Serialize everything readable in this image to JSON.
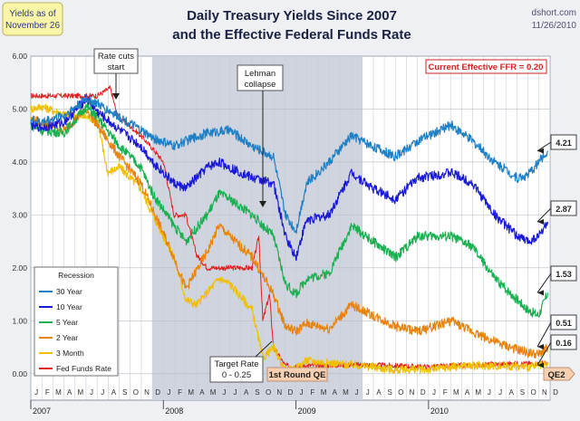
{
  "header": {
    "title_line1": "Daily Treasury Yields Since 2007",
    "title_line2": "and the Effective Federal Funds Rate",
    "source": "dshort.com",
    "date": "11/26/2010",
    "yields_box_line1": "Yields as of",
    "yields_box_line2": "November 26"
  },
  "colors": {
    "30y": "#1f7fc4",
    "10y": "#1a1ad6",
    "5y": "#18b050",
    "2y": "#e8830e",
    "3m": "#f0c000",
    "ffr": "#e02020",
    "recession": "#cfd3de",
    "panel": "#ffffff",
    "note_bg": "#f6d0b0",
    "yield_box_bg": "#fbf5a8"
  },
  "chart_data": {
    "type": "line",
    "ylim": [
      -0.5,
      6.0
    ],
    "yticks": [
      0.0,
      1.0,
      2.0,
      3.0,
      4.0,
      5.0,
      6.0
    ],
    "ytick_labels": [
      "0.00",
      "1.00",
      "2.00",
      "3.00",
      "4.00",
      "5.00",
      "6.00"
    ],
    "x_range": [
      2007.0,
      2010.917
    ],
    "month_labels": [
      "J",
      "F",
      "M",
      "A",
      "M",
      "J",
      "J",
      "A",
      "S",
      "O",
      "N",
      "D",
      "J",
      "F",
      "M",
      "A",
      "M",
      "J",
      "J",
      "A",
      "S",
      "O",
      "N",
      "D",
      "J",
      "F",
      "M",
      "A",
      "M",
      "J",
      "J",
      "A",
      "S",
      "O",
      "N",
      "D",
      "J",
      "F",
      "M",
      "A",
      "M",
      "J",
      "J",
      "A",
      "S",
      "O",
      "N",
      "D"
    ],
    "year_labels": [
      {
        "label": "2007",
        "x": 2007.0
      },
      {
        "label": "2008",
        "x": 2008.0
      },
      {
        "label": "2009",
        "x": 2009.0
      },
      {
        "label": "2010",
        "x": 2010.0
      }
    ],
    "recession": {
      "label": "Recession",
      "start": 2007.917,
      "end": 2009.5
    },
    "series": [
      {
        "key": "30y",
        "name": "30 Year",
        "last_label": "4.21",
        "last": 4.21,
        "points": [
          [
            2007.0,
            4.8
          ],
          [
            2007.08,
            4.75
          ],
          [
            2007.25,
            4.88
          ],
          [
            2007.42,
            5.2
          ],
          [
            2007.5,
            5.1
          ],
          [
            2007.67,
            4.85
          ],
          [
            2007.83,
            4.6
          ],
          [
            2007.92,
            4.45
          ],
          [
            2008.08,
            4.3
          ],
          [
            2008.17,
            4.4
          ],
          [
            2008.33,
            4.55
          ],
          [
            2008.5,
            4.6
          ],
          [
            2008.67,
            4.3
          ],
          [
            2008.83,
            4.1
          ],
          [
            2008.92,
            3.0
          ],
          [
            2009.0,
            2.7
          ],
          [
            2009.08,
            3.6
          ],
          [
            2009.25,
            4.0
          ],
          [
            2009.42,
            4.5
          ],
          [
            2009.58,
            4.3
          ],
          [
            2009.75,
            4.1
          ],
          [
            2009.92,
            4.4
          ],
          [
            2010.17,
            4.7
          ],
          [
            2010.33,
            4.4
          ],
          [
            2010.5,
            4.0
          ],
          [
            2010.67,
            3.7
          ],
          [
            2010.75,
            3.75
          ],
          [
            2010.83,
            4.0
          ],
          [
            2010.9,
            4.21
          ]
        ]
      },
      {
        "key": "10y",
        "name": "10 Year",
        "last_label": "2.87",
        "last": 2.87,
        "points": [
          [
            2007.0,
            4.7
          ],
          [
            2007.08,
            4.65
          ],
          [
            2007.25,
            4.75
          ],
          [
            2007.42,
            5.2
          ],
          [
            2007.5,
            4.95
          ],
          [
            2007.67,
            4.6
          ],
          [
            2007.83,
            4.3
          ],
          [
            2007.92,
            4.0
          ],
          [
            2008.08,
            3.6
          ],
          [
            2008.17,
            3.5
          ],
          [
            2008.33,
            3.9
          ],
          [
            2008.42,
            4.0
          ],
          [
            2008.5,
            3.9
          ],
          [
            2008.67,
            3.7
          ],
          [
            2008.83,
            3.6
          ],
          [
            2008.92,
            2.6
          ],
          [
            2009.0,
            2.2
          ],
          [
            2009.08,
            2.9
          ],
          [
            2009.25,
            3.0
          ],
          [
            2009.42,
            3.8
          ],
          [
            2009.58,
            3.5
          ],
          [
            2009.75,
            3.3
          ],
          [
            2009.92,
            3.7
          ],
          [
            2010.17,
            3.8
          ],
          [
            2010.33,
            3.6
          ],
          [
            2010.5,
            3.0
          ],
          [
            2010.67,
            2.6
          ],
          [
            2010.75,
            2.5
          ],
          [
            2010.83,
            2.6
          ],
          [
            2010.9,
            2.87
          ]
        ]
      },
      {
        "key": "5y",
        "name": "5 Year",
        "last_label": "1.53",
        "last": 1.53,
        "points": [
          [
            2007.0,
            4.7
          ],
          [
            2007.08,
            4.6
          ],
          [
            2007.25,
            4.55
          ],
          [
            2007.42,
            5.05
          ],
          [
            2007.5,
            4.85
          ],
          [
            2007.67,
            4.3
          ],
          [
            2007.83,
            3.9
          ],
          [
            2007.92,
            3.4
          ],
          [
            2008.08,
            2.8
          ],
          [
            2008.17,
            2.5
          ],
          [
            2008.33,
            3.0
          ],
          [
            2008.42,
            3.4
          ],
          [
            2008.5,
            3.3
          ],
          [
            2008.67,
            3.0
          ],
          [
            2008.83,
            2.6
          ],
          [
            2008.92,
            1.7
          ],
          [
            2009.0,
            1.5
          ],
          [
            2009.08,
            1.8
          ],
          [
            2009.25,
            1.9
          ],
          [
            2009.42,
            2.8
          ],
          [
            2009.58,
            2.5
          ],
          [
            2009.75,
            2.2
          ],
          [
            2009.92,
            2.6
          ],
          [
            2010.17,
            2.6
          ],
          [
            2010.33,
            2.4
          ],
          [
            2010.5,
            1.8
          ],
          [
            2010.67,
            1.4
          ],
          [
            2010.75,
            1.2
          ],
          [
            2010.83,
            1.1
          ],
          [
            2010.9,
            1.53
          ]
        ]
      },
      {
        "key": "2y",
        "name": "2 Year",
        "last_label": "0.51",
        "last": 0.51,
        "points": [
          [
            2007.0,
            4.8
          ],
          [
            2007.08,
            4.75
          ],
          [
            2007.25,
            4.6
          ],
          [
            2007.42,
            5.0
          ],
          [
            2007.5,
            4.7
          ],
          [
            2007.67,
            4.1
          ],
          [
            2007.83,
            3.6
          ],
          [
            2007.92,
            3.1
          ],
          [
            2008.08,
            2.2
          ],
          [
            2008.17,
            1.6
          ],
          [
            2008.33,
            2.3
          ],
          [
            2008.42,
            2.8
          ],
          [
            2008.5,
            2.6
          ],
          [
            2008.67,
            2.2
          ],
          [
            2008.83,
            1.5
          ],
          [
            2008.92,
            0.9
          ],
          [
            2009.0,
            0.8
          ],
          [
            2009.08,
            0.95
          ],
          [
            2009.25,
            0.85
          ],
          [
            2009.42,
            1.3
          ],
          [
            2009.58,
            1.1
          ],
          [
            2009.75,
            0.9
          ],
          [
            2009.92,
            0.8
          ],
          [
            2010.17,
            1.0
          ],
          [
            2010.33,
            0.8
          ],
          [
            2010.5,
            0.6
          ],
          [
            2010.67,
            0.45
          ],
          [
            2010.75,
            0.4
          ],
          [
            2010.83,
            0.35
          ],
          [
            2010.9,
            0.51
          ]
        ]
      },
      {
        "key": "3m",
        "name": "3 Month",
        "last_label": "0.16",
        "last": 0.16,
        "points": [
          [
            2007.0,
            5.0
          ],
          [
            2007.08,
            5.05
          ],
          [
            2007.25,
            4.9
          ],
          [
            2007.42,
            4.85
          ],
          [
            2007.5,
            4.8
          ],
          [
            2007.58,
            3.8
          ],
          [
            2007.67,
            3.9
          ],
          [
            2007.83,
            3.5
          ],
          [
            2007.92,
            3.0
          ],
          [
            2008.08,
            2.2
          ],
          [
            2008.17,
            1.4
          ],
          [
            2008.25,
            1.3
          ],
          [
            2008.42,
            1.8
          ],
          [
            2008.5,
            1.7
          ],
          [
            2008.67,
            1.2
          ],
          [
            2008.75,
            0.3
          ],
          [
            2008.83,
            0.5
          ],
          [
            2008.92,
            0.05
          ],
          [
            2009.0,
            0.1
          ],
          [
            2009.08,
            0.25
          ],
          [
            2009.25,
            0.2
          ],
          [
            2009.5,
            0.15
          ],
          [
            2009.75,
            0.07
          ],
          [
            2010.0,
            0.08
          ],
          [
            2010.25,
            0.15
          ],
          [
            2010.5,
            0.15
          ],
          [
            2010.75,
            0.13
          ],
          [
            2010.9,
            0.16
          ]
        ]
      },
      {
        "key": "ffr",
        "name": "Fed Funds Rate",
        "last_label": "",
        "last": 0.2,
        "points": [
          [
            2007.0,
            5.25
          ],
          [
            2007.5,
            5.25
          ],
          [
            2007.6,
            5.4
          ],
          [
            2007.65,
            4.9
          ],
          [
            2007.71,
            4.75
          ],
          [
            2007.83,
            4.5
          ],
          [
            2007.92,
            4.25
          ],
          [
            2008.0,
            4.0
          ],
          [
            2008.08,
            3.0
          ],
          [
            2008.17,
            3.0
          ],
          [
            2008.25,
            2.25
          ],
          [
            2008.33,
            2.0
          ],
          [
            2008.67,
            2.0
          ],
          [
            2008.72,
            2.6
          ],
          [
            2008.75,
            1.0
          ],
          [
            2008.8,
            1.5
          ],
          [
            2008.83,
            0.5
          ],
          [
            2008.92,
            0.15
          ],
          [
            2009.0,
            0.15
          ],
          [
            2009.5,
            0.17
          ],
          [
            2010.0,
            0.13
          ],
          [
            2010.5,
            0.18
          ],
          [
            2010.9,
            0.2
          ]
        ]
      }
    ],
    "annotations": {
      "rate_cuts_line1": "Rate cuts",
      "rate_cuts_line2": "start",
      "lehman_line1": "Lehman",
      "lehman_line2": "collapse",
      "target_line1": "Target Rate",
      "target_line2": "0 - 0.25",
      "qe1": "1st Round QE",
      "qe2": "QE2",
      "current_ffr": "Current Effective FFR = 0.20"
    }
  }
}
